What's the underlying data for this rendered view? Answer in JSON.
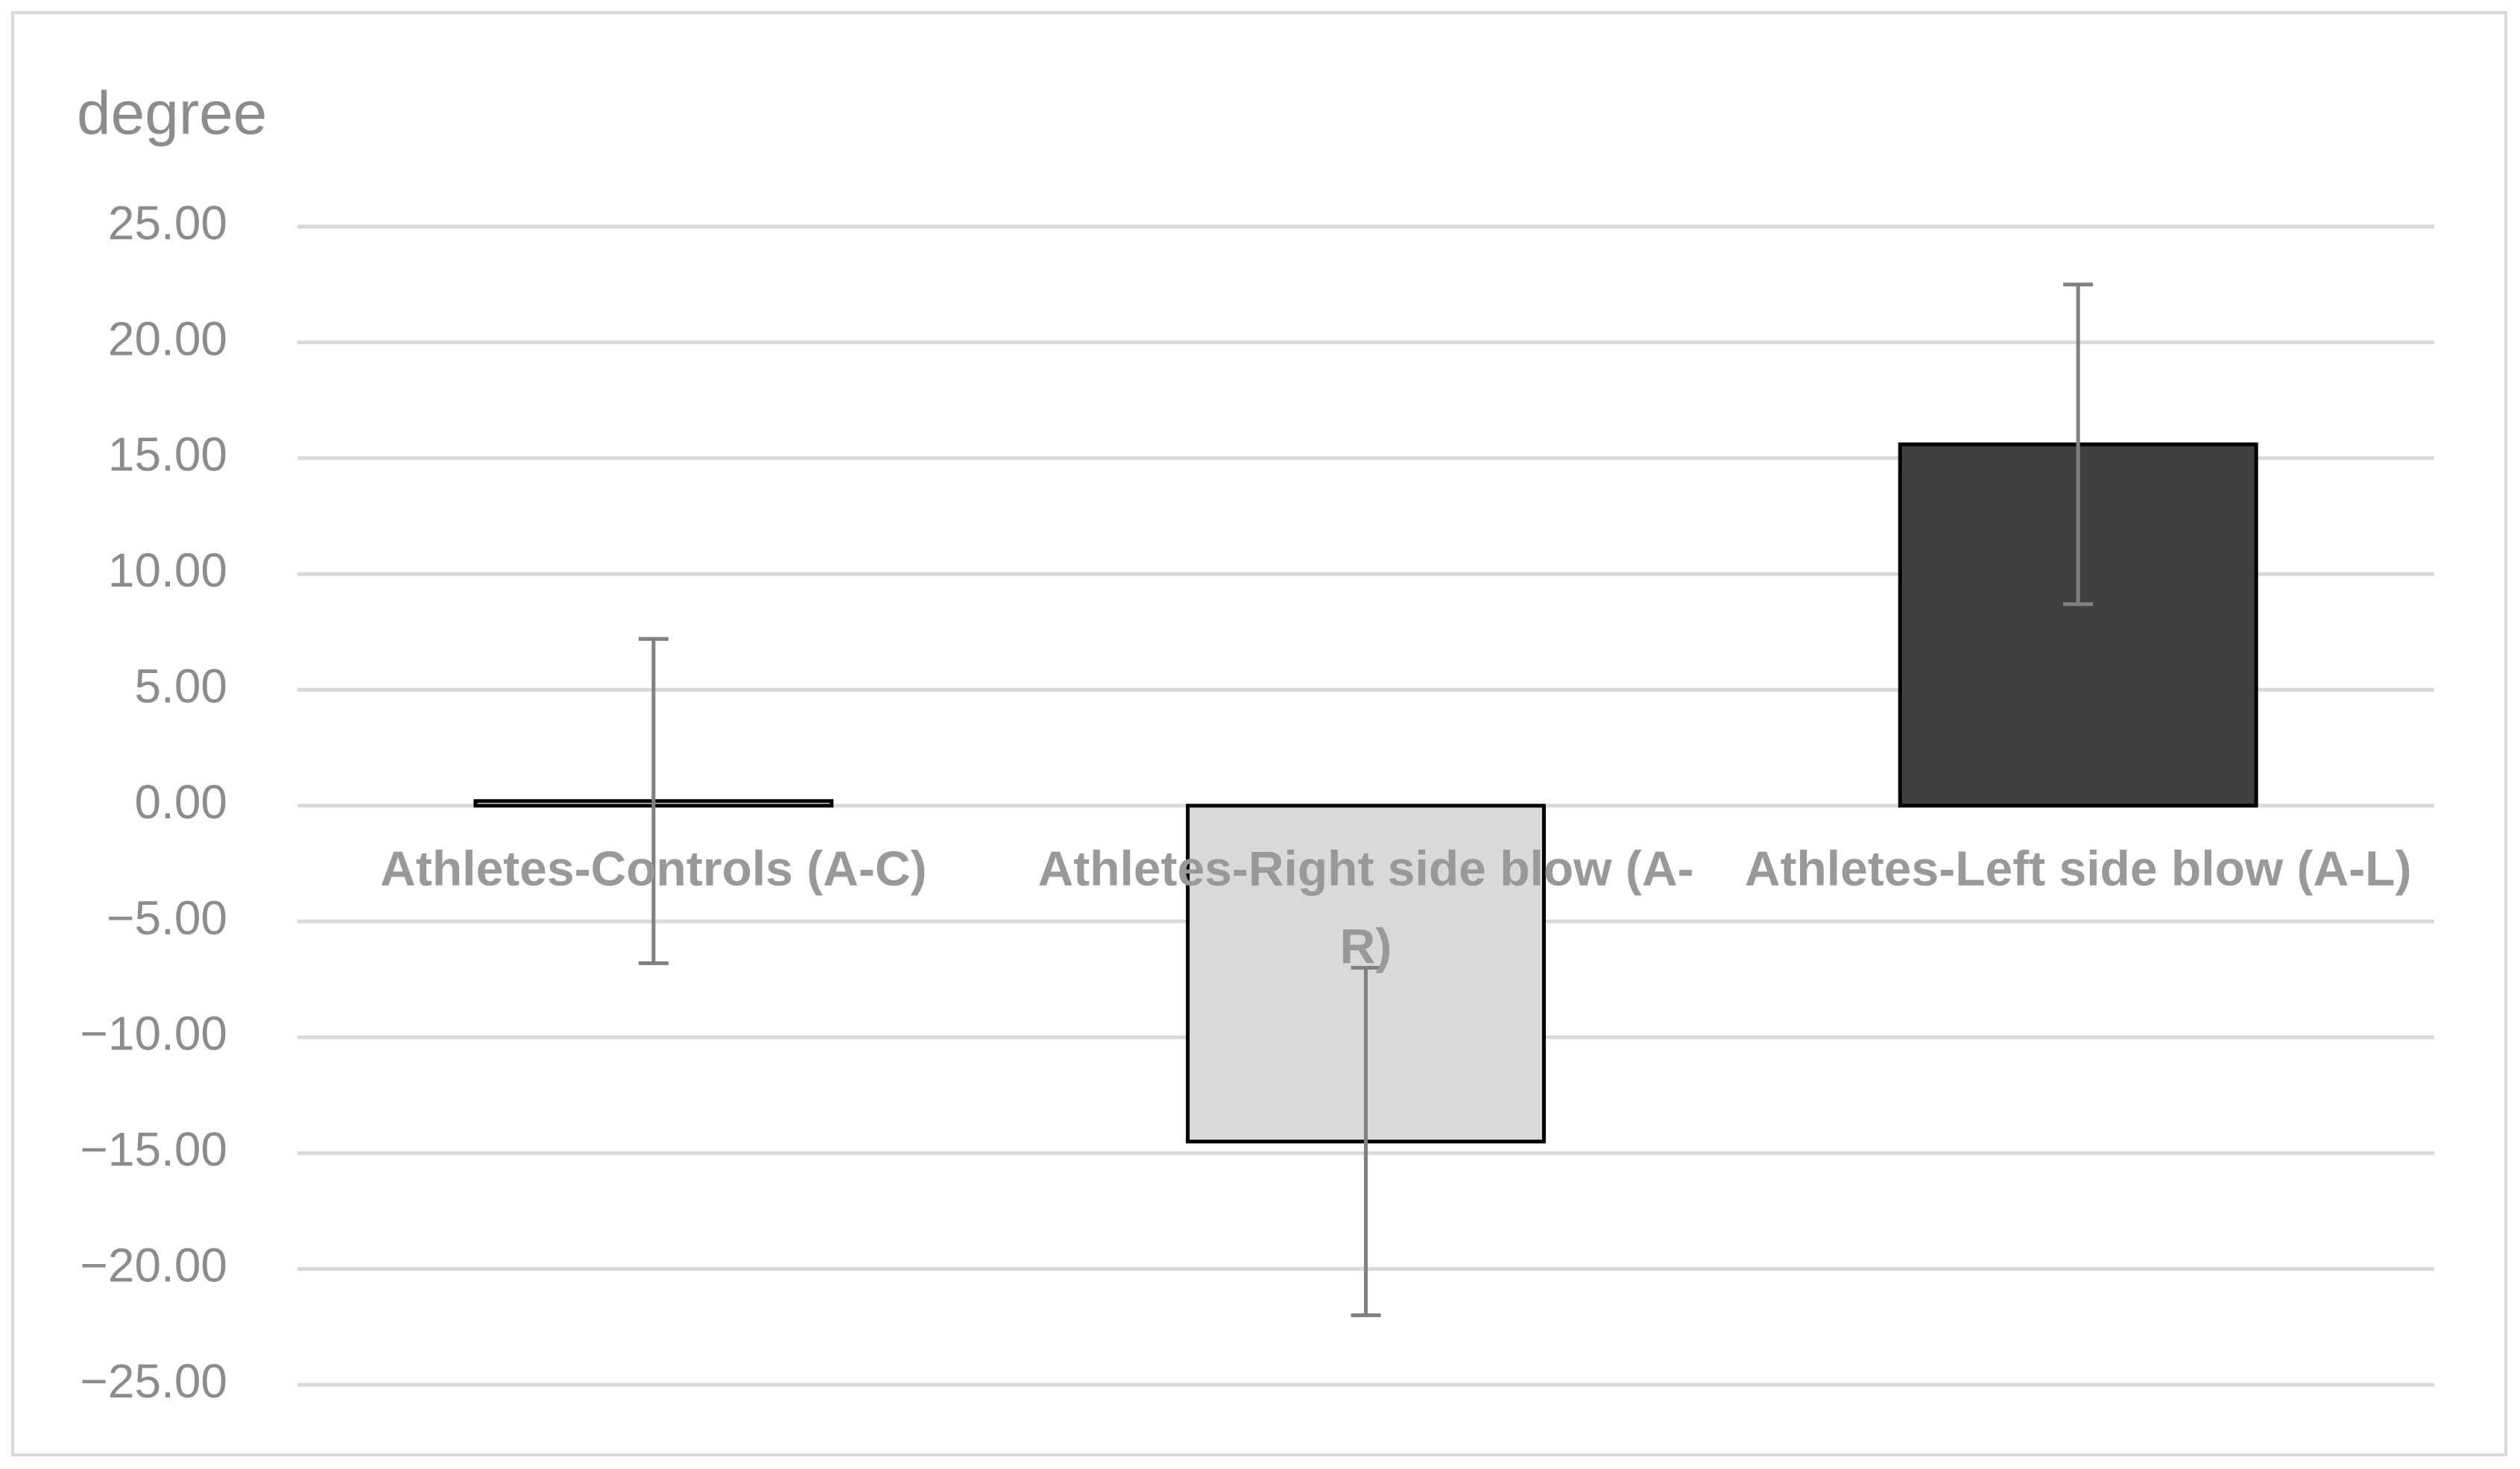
{
  "chart_data": {
    "type": "bar",
    "y_axis_label": "degree",
    "categories": [
      "Athletes-Controls (A-C)",
      "Athletes-Right side blow (A-R)",
      "Athletes-Left side blow (A-L)"
    ],
    "values": [
      0.2,
      -14.5,
      15.6
    ],
    "errors": [
      7.0,
      7.5,
      6.9
    ],
    "colors": [
      "#ffffff",
      "#d9d9d9",
      "#404040"
    ],
    "ylim": [
      -25,
      25
    ],
    "yticks": [
      {
        "value": -25,
        "label": "−25.00"
      },
      {
        "value": -20,
        "label": "−20.00"
      },
      {
        "value": -15,
        "label": "−15.00"
      },
      {
        "value": -10,
        "label": "−10.00"
      },
      {
        "value": -5,
        "label": "−5.00"
      },
      {
        "value": 0,
        "label": "0.00"
      },
      {
        "value": 5,
        "label": "5.00"
      },
      {
        "value": 10,
        "label": "10.00"
      },
      {
        "value": 15,
        "label": "15.00"
      },
      {
        "value": 20,
        "label": "20.00"
      },
      {
        "value": 25,
        "label": "25.00"
      }
    ],
    "grid": true
  }
}
